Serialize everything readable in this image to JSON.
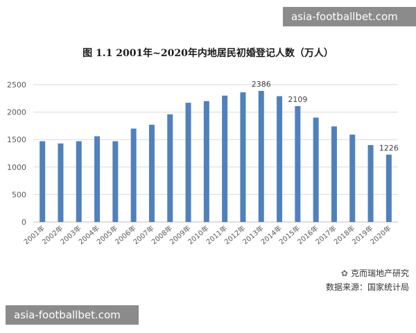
{
  "watermarks": {
    "top": "asia-footballbet.com",
    "bottom": "asia-footballbet.com"
  },
  "brand": {
    "name": "克而瑞地产研究",
    "source": "数据来源：国家统计局",
    "icon": "wechat-icon"
  },
  "colors": {
    "bar": "#4f81bd",
    "grid": "#d9d9d9",
    "axis": "#bfbfbf"
  },
  "chart_data": {
    "type": "bar",
    "title": "图 1.1  2001年~2020年内地居民初婚登记人数（万人）",
    "categories": [
      "2001年",
      "2002年",
      "2003年",
      "2004年",
      "2005年",
      "2006年",
      "2007年",
      "2008年",
      "2009年",
      "2010年",
      "2011年",
      "2012年",
      "2013年",
      "2014年",
      "2015年",
      "2016年",
      "2017年",
      "2018年",
      "2019年",
      "2020年"
    ],
    "values": [
      1470,
      1430,
      1470,
      1560,
      1470,
      1700,
      1770,
      1960,
      2170,
      2200,
      2300,
      2360,
      2386,
      2290,
      2109,
      1900,
      1740,
      1590,
      1400,
      1226
    ],
    "data_labels": [
      {
        "index": 12,
        "text": "2386"
      },
      {
        "index": 14,
        "text": "2109"
      },
      {
        "index": 19,
        "text": "1226"
      }
    ],
    "ylim": [
      0,
      2500
    ],
    "yticks": [
      0,
      500,
      1000,
      1500,
      2000,
      2500
    ],
    "ytick_labels": [
      "0",
      "500",
      "1000",
      "1500",
      "2000",
      "2500"
    ],
    "grid": true,
    "legend": "none"
  }
}
